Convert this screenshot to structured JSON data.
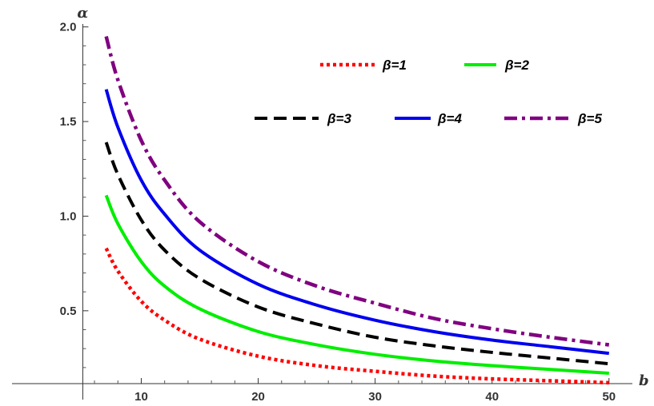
{
  "chart_data": {
    "type": "line",
    "title": "",
    "xlabel": "b",
    "ylabel": "α",
    "xlim": [
      1,
      52
    ],
    "ylim": [
      0.115,
      2.1
    ],
    "xticks": [
      "10",
      "20",
      "30",
      "40",
      "50"
    ],
    "xtick_values": [
      10,
      20,
      30,
      40,
      50
    ],
    "yticks": [
      "0.5",
      "1.0",
      "1.5",
      "2.0"
    ],
    "ytick_values": [
      0.5,
      1.0,
      1.5,
      2.0
    ],
    "grid": false,
    "legend_position": "top-right",
    "x": [
      7,
      8,
      10,
      12,
      15,
      20,
      25,
      30,
      35,
      40,
      45,
      50
    ],
    "series": [
      {
        "name": "β=1",
        "color": "#ff0000",
        "style": "dotted",
        "values": [
          0.83,
          0.71,
          0.55,
          0.45,
          0.35,
          0.26,
          0.21,
          0.18,
          0.155,
          0.14,
          0.13,
          0.12
        ]
      },
      {
        "name": "β=2",
        "color": "#00ee00",
        "style": "solid",
        "values": [
          1.11,
          0.96,
          0.76,
          0.63,
          0.51,
          0.39,
          0.32,
          0.27,
          0.235,
          0.21,
          0.19,
          0.17
        ]
      },
      {
        "name": "β=3",
        "color": "#000000",
        "style": "dashed",
        "values": [
          1.39,
          1.22,
          0.98,
          0.82,
          0.67,
          0.52,
          0.43,
          0.36,
          0.315,
          0.28,
          0.25,
          0.22
        ]
      },
      {
        "name": "β=4",
        "color": "#0000ee",
        "style": "solid",
        "values": [
          1.67,
          1.47,
          1.19,
          1.01,
          0.82,
          0.64,
          0.53,
          0.45,
          0.39,
          0.345,
          0.31,
          0.275
        ]
      },
      {
        "name": "β=5",
        "color": "#800080",
        "style": "dashdot",
        "values": [
          1.95,
          1.72,
          1.4,
          1.19,
          0.97,
          0.76,
          0.63,
          0.54,
          0.46,
          0.405,
          0.36,
          0.32
        ]
      }
    ]
  }
}
